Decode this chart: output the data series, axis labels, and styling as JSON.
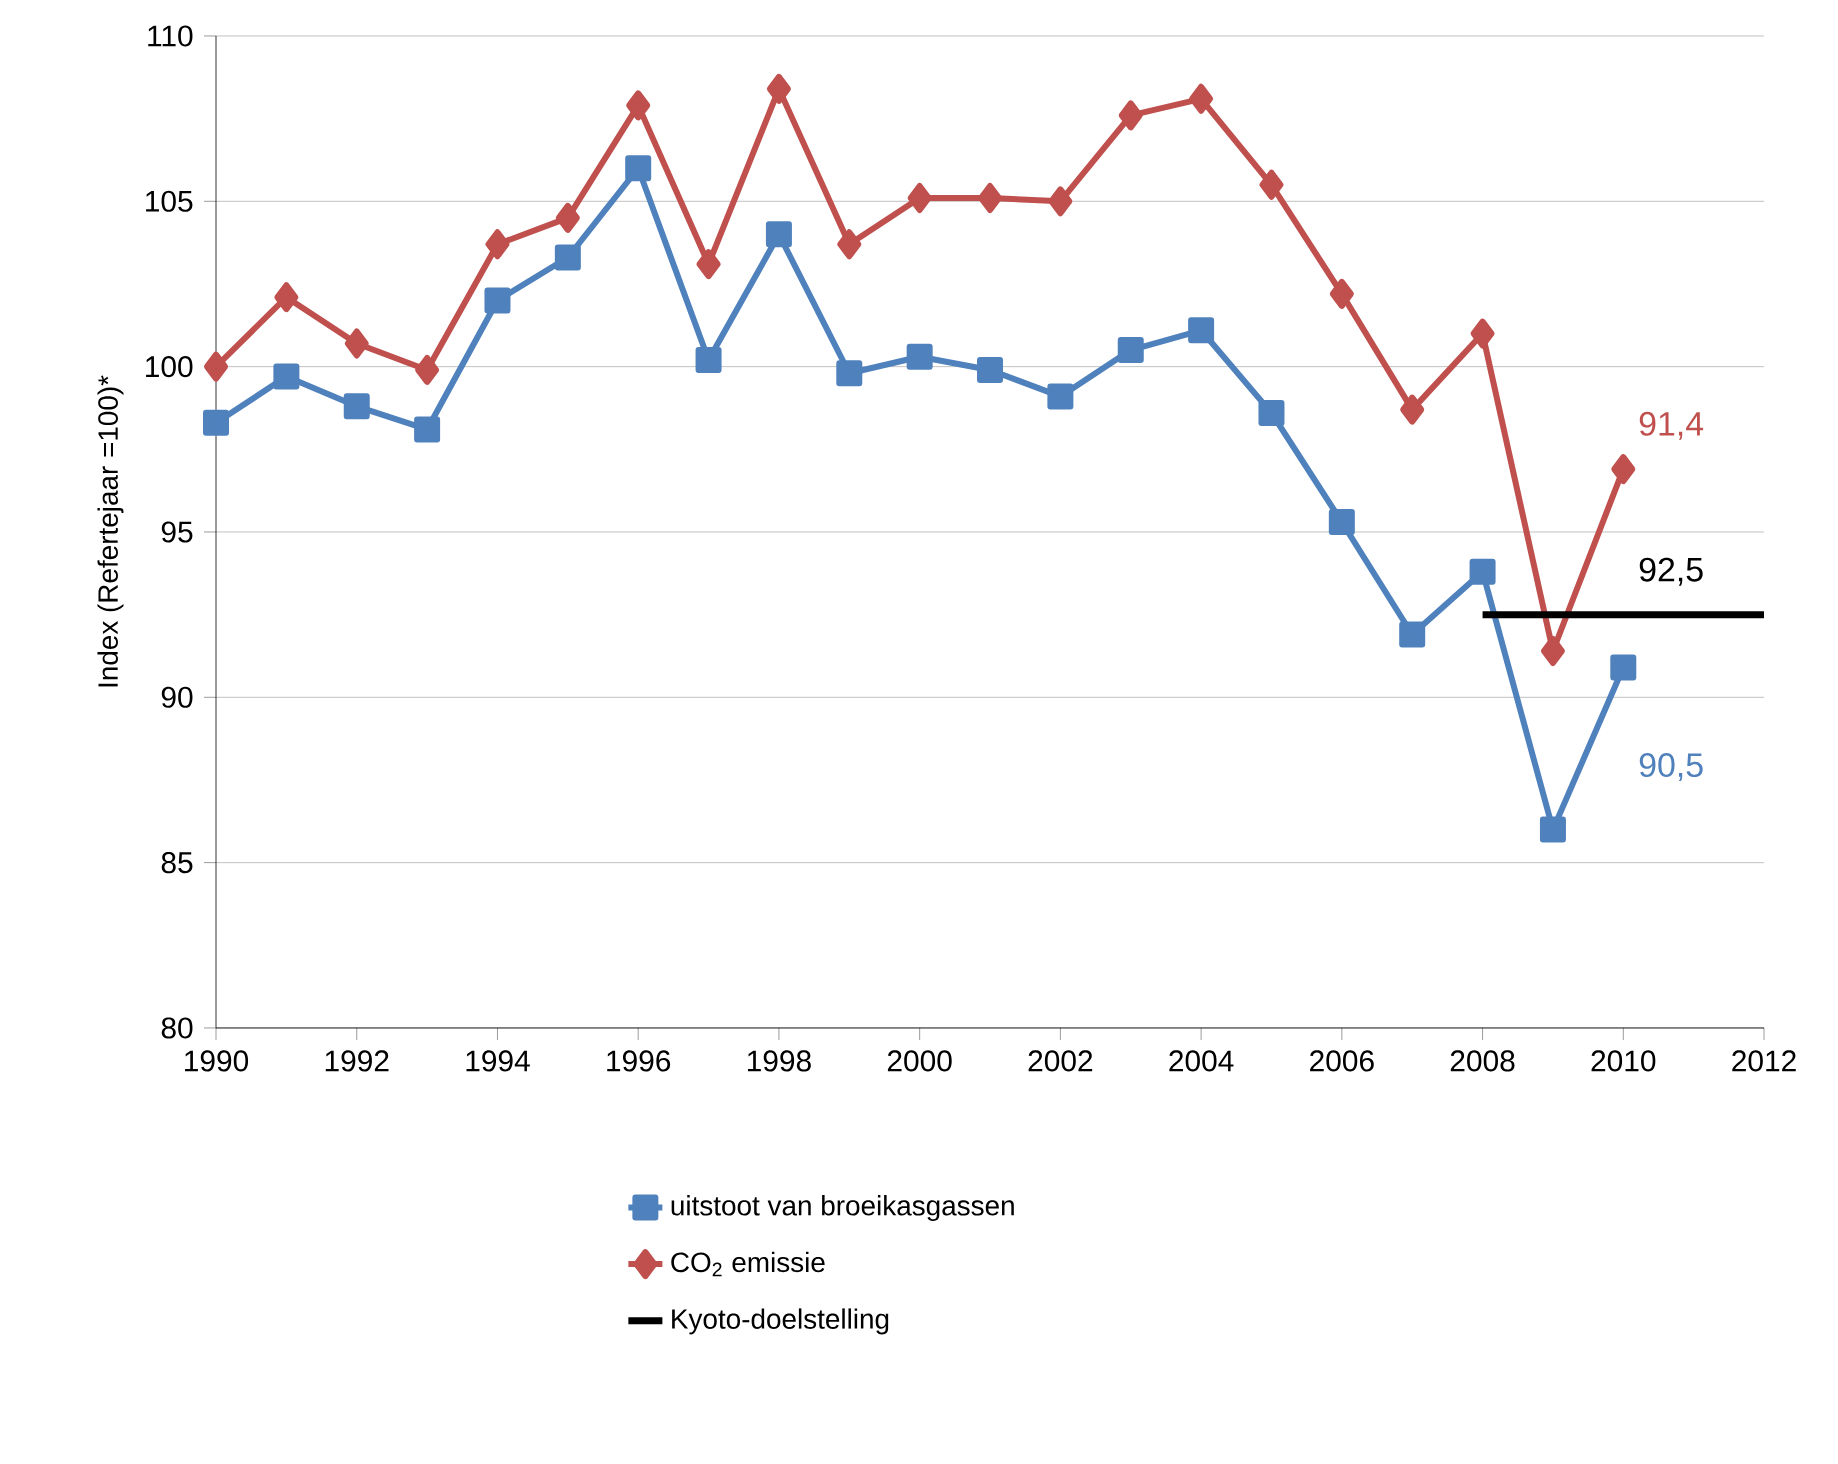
{
  "chart_data": {
    "type": "line",
    "ylabel": "Index (Refertejaar =100)*",
    "x": [
      1990,
      1991,
      1992,
      1993,
      1994,
      1995,
      1996,
      1997,
      1998,
      1999,
      2000,
      2001,
      2002,
      2003,
      2004,
      2005,
      2006,
      2007,
      2008,
      2009,
      2010
    ],
    "series": [
      {
        "name": "uitstoot van broeikasgassen",
        "color": "#4f81bd",
        "marker": "square",
        "values": [
          98.3,
          99.7,
          98.8,
          98.1,
          102.0,
          103.3,
          106.0,
          100.2,
          104.0,
          99.8,
          100.3,
          99.9,
          99.1,
          100.5,
          101.1,
          98.6,
          95.3,
          91.9,
          93.8,
          86.0,
          90.9
        ]
      },
      {
        "name": "CO$_{2}$ emissie",
        "color": "#c0504d",
        "marker": "diamond",
        "values": [
          100.0,
          102.1,
          100.7,
          99.9,
          103.7,
          104.5,
          107.9,
          103.1,
          108.4,
          103.7,
          105.1,
          105.1,
          105.0,
          107.6,
          108.1,
          105.5,
          102.2,
          98.7,
          101.0,
          91.4,
          96.9
        ]
      },
      {
        "name": "Kyoto-doelstelling",
        "color": "#000000",
        "marker": "none",
        "x": [
          2008,
          2012
        ],
        "values": [
          92.5,
          92.5
        ]
      }
    ],
    "annotations": [
      "90,5",
      "91,4",
      "92,5"
    ],
    "xlim": [
      1990,
      2012
    ],
    "xticks": [
      1990,
      1992,
      1994,
      1996,
      1998,
      2000,
      2002,
      2004,
      2006,
      2008,
      2010,
      2012
    ],
    "ylim": [
      80,
      110
    ],
    "yticks": [
      80,
      85,
      90,
      95,
      100,
      105,
      110
    ],
    "grid": "y",
    "legend": "bottom"
  }
}
